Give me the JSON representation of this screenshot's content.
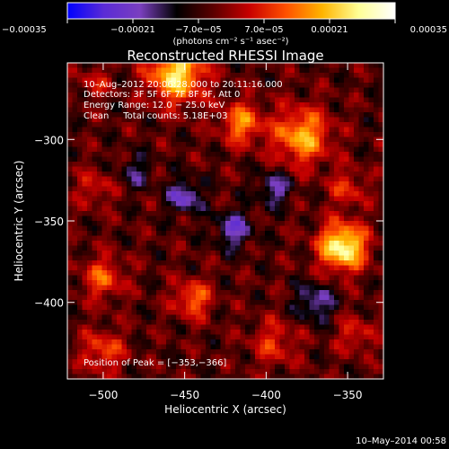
{
  "chart_data": {
    "type": "heatmap",
    "title": "Reconstructed RHESSI Image",
    "xlabel": "Heliocentric X (arcsec)",
    "ylabel": "Heliocentric Y (arcsec)",
    "xlim": [
      -522,
      -328
    ],
    "ylim": [
      -447,
      -253
    ],
    "xticks": [
      -500,
      -450,
      -400,
      -350
    ],
    "xtick_labels": [
      "−500",
      "−450",
      "−400",
      "−350"
    ],
    "yticks": [
      -300,
      -350,
      -400
    ],
    "ytick_labels": [
      "−300",
      "−350",
      "−400"
    ],
    "colorbar": {
      "range": [
        -0.00035,
        0.00035
      ],
      "ticks": [
        -0.00035,
        -0.00021,
        -7e-05,
        7e-05,
        0.00021,
        0.00035
      ],
      "tick_labels": [
        "−0.00035",
        "−0.00021",
        "−7.0e−05",
        "7.0e−05",
        "0.00021",
        "0.00035"
      ],
      "unit_label": "(photons cm⁻² s⁻¹ asec⁻²)",
      "colors": [
        "#0000ff",
        "#5a2bd6",
        "#7a3fbf",
        "#000000",
        "#5a0000",
        "#c80000",
        "#ff5000",
        "#ffb400",
        "#ffff96",
        "#ffffff"
      ]
    },
    "annotations": {
      "time_range": "10–Aug–2012 20:06:28.000 to 20:11:16.000",
      "detectors": "Detectors: 3F 5F 6F 7F 8F 9F, Att 0",
      "energy_range": "Energy Range: 12.0 − 25.0 keV",
      "method": "Clean     Total counts: 5.18E+03",
      "peak": "Position of Peak = [−353,−366]"
    },
    "peak_position": [
      -353,
      -366
    ],
    "sources": [
      {
        "x": -353,
        "y": -366,
        "r": 10,
        "amp": 0.00035
      },
      {
        "x": -455,
        "y": -260,
        "r": 12,
        "amp": 0.0003
      },
      {
        "x": -378,
        "y": -298,
        "r": 12,
        "amp": 0.00024
      },
      {
        "x": -415,
        "y": -290,
        "r": 9,
        "amp": 0.0002
      },
      {
        "x": -445,
        "y": -398,
        "r": 8,
        "amp": 0.00018
      },
      {
        "x": -500,
        "y": -385,
        "r": 9,
        "amp": 0.00016
      },
      {
        "x": -500,
        "y": -430,
        "r": 9,
        "amp": 0.00015
      },
      {
        "x": -350,
        "y": -330,
        "r": 8,
        "amp": 0.00012
      },
      {
        "x": -395,
        "y": -425,
        "r": 10,
        "amp": 0.00012
      },
      {
        "x": -505,
        "y": -330,
        "r": 8,
        "amp": 0.0001
      },
      {
        "x": -505,
        "y": -265,
        "r": 7,
        "amp": 9e-05
      },
      {
        "x": -345,
        "y": -420,
        "r": 8,
        "amp": 0.00011
      },
      {
        "x": -450,
        "y": -335,
        "r": 7,
        "amp": -0.00018
      },
      {
        "x": -420,
        "y": -355,
        "r": 8,
        "amp": -0.00016
      },
      {
        "x": -395,
        "y": -330,
        "r": 7,
        "amp": -0.00015
      },
      {
        "x": -370,
        "y": -400,
        "r": 8,
        "amp": -0.00015
      },
      {
        "x": -480,
        "y": -320,
        "r": 7,
        "amp": -0.0001
      }
    ]
  },
  "footer": {
    "date": "10–May–2014 00:58"
  }
}
